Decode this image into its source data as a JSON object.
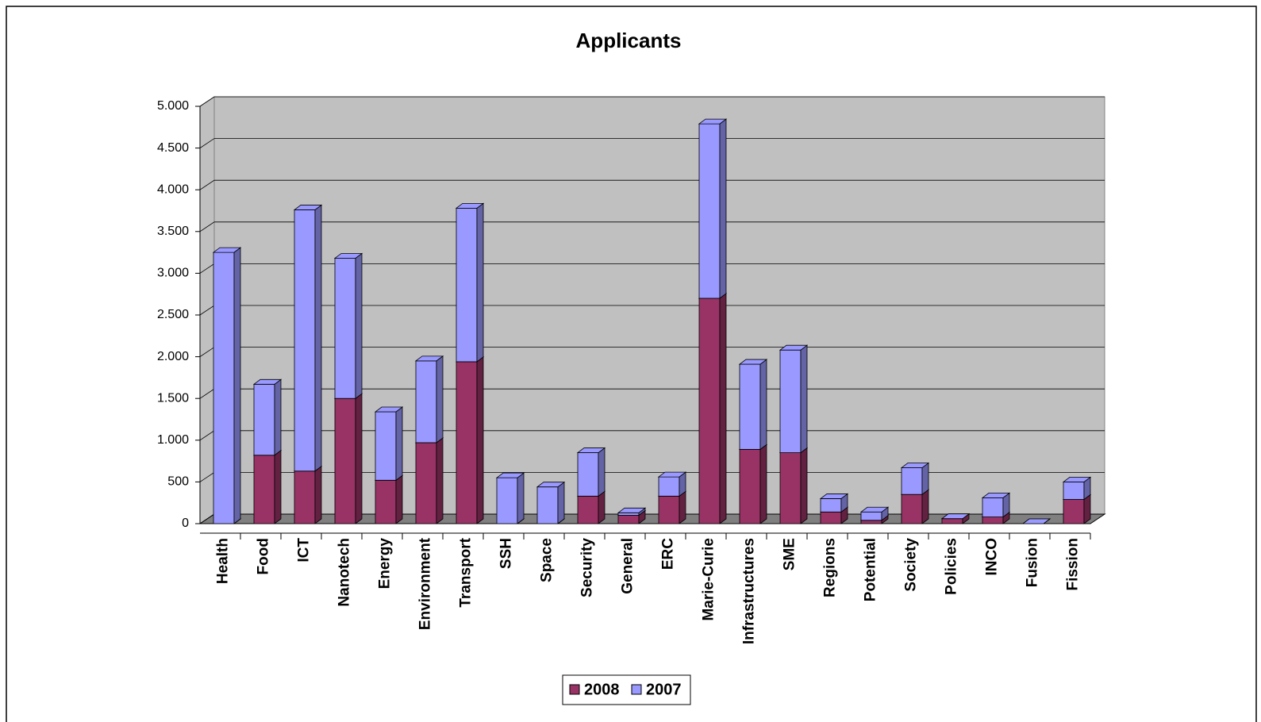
{
  "chart_data": {
    "type": "bar",
    "stacked": true,
    "title": "Applicants",
    "categories": [
      "Health",
      "Food",
      "ICT",
      "Nanotech",
      "Energy",
      "Environment",
      "Transport",
      "SSH",
      "Space",
      "Security",
      "General",
      "ERC",
      "Marie-Curie",
      "Infrastructures",
      "SME",
      "Regions",
      "Potential",
      "Society",
      "Policies",
      "INCO",
      "Fusion",
      "Fission"
    ],
    "series": [
      {
        "name": "2008",
        "color": "#993366",
        "values": [
          0,
          820,
          630,
          1500,
          520,
          970,
          1940,
          0,
          0,
          330,
          100,
          330,
          2700,
          890,
          850,
          140,
          40,
          350,
          60,
          80,
          0,
          290
        ]
      },
      {
        "name": "2007",
        "color": "#9999ff",
        "values": [
          3250,
          850,
          3130,
          1680,
          820,
          980,
          1840,
          550,
          440,
          520,
          30,
          230,
          2090,
          1020,
          1230,
          160,
          100,
          320,
          0,
          230,
          0,
          210
        ]
      }
    ],
    "ylim": [
      0,
      5000
    ],
    "yticks": [
      0,
      500,
      {
        "value": 1000,
        "label": "1.000"
      },
      {
        "value": 1500,
        "label": "1.500"
      },
      {
        "value": 2000,
        "label": "2.000"
      },
      {
        "value": 2500,
        "label": "2.500"
      },
      {
        "value": 3000,
        "label": "3.000"
      },
      {
        "value": 3500,
        "label": "3.500"
      },
      {
        "value": 4000,
        "label": "4.000"
      },
      {
        "value": 4500,
        "label": "4.500"
      },
      {
        "value": 5000,
        "label": "5.000"
      }
    ],
    "grid": true,
    "legend": "bottom"
  }
}
